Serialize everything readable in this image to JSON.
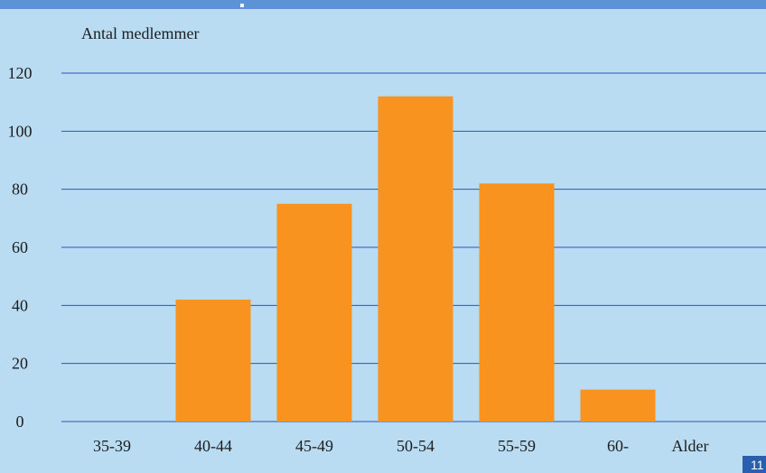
{
  "slide": {
    "page_number": "11",
    "colors": {
      "background": "#b9dcf2",
      "top_band": "#5b93d6",
      "bar": "#f7931e",
      "gridline": "#2f55b4",
      "page_badge": "#2a5fb0"
    }
  },
  "chart_data": {
    "type": "bar",
    "title": "",
    "ylabel": "Antal medlemmer",
    "xlabel": "Alder",
    "categories": [
      "35-39",
      "40-44",
      "45-49",
      "50-54",
      "55-59",
      "60-"
    ],
    "values": [
      0,
      42,
      75,
      112,
      82,
      11
    ],
    "ylim": [
      0,
      120
    ],
    "yticks": [
      0,
      20,
      40,
      60,
      80,
      100,
      120
    ],
    "grid": true,
    "legend": "none"
  }
}
